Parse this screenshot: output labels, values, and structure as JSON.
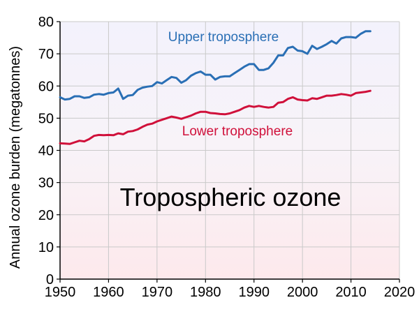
{
  "chart_data": {
    "type": "line",
    "title": "Tropospheric ozone",
    "xlabel": "",
    "ylabel": "Annual ozone burden (megatonnes)",
    "xlim": [
      1950,
      2020
    ],
    "ylim": [
      0,
      80
    ],
    "xticks": [
      1950,
      1960,
      1970,
      1980,
      1990,
      2000,
      2010,
      2020
    ],
    "yticks": [
      0,
      10,
      20,
      30,
      40,
      50,
      60,
      70,
      80
    ],
    "grid": true,
    "series": [
      {
        "name": "Upper troposphere",
        "color": "#2a6fb5",
        "x": [
          1950,
          1951,
          1952,
          1953,
          1954,
          1955,
          1956,
          1957,
          1958,
          1959,
          1960,
          1961,
          1962,
          1963,
          1964,
          1965,
          1966,
          1967,
          1968,
          1969,
          1970,
          1971,
          1972,
          1973,
          1974,
          1975,
          1976,
          1977,
          1978,
          1979,
          1980,
          1981,
          1982,
          1983,
          1984,
          1985,
          1986,
          1987,
          1988,
          1989,
          1990,
          1991,
          1992,
          1993,
          1994,
          1995,
          1996,
          1997,
          1998,
          1999,
          2000,
          2001,
          2002,
          2003,
          2004,
          2005,
          2006,
          2007,
          2008,
          2009,
          2010,
          2011,
          2012,
          2013,
          2014
        ],
        "values": [
          56.5,
          55.8,
          56.0,
          56.8,
          56.8,
          56.3,
          56.5,
          57.3,
          57.5,
          57.3,
          57.8,
          58.0,
          59.2,
          56.0,
          57.0,
          57.2,
          58.8,
          59.5,
          59.8,
          60.0,
          61.2,
          60.8,
          61.8,
          62.8,
          62.5,
          61.0,
          61.8,
          63.2,
          64.0,
          64.5,
          63.5,
          63.5,
          62.0,
          62.8,
          63.0,
          63.0,
          64.0,
          65.0,
          66.0,
          66.8,
          66.8,
          65.0,
          65.0,
          65.5,
          67.2,
          69.5,
          69.5,
          71.8,
          72.2,
          71.0,
          70.8,
          70.0,
          72.5,
          71.5,
          72.2,
          73.0,
          74.0,
          73.2,
          74.8,
          75.2,
          75.2,
          75.0,
          76.2,
          77.0,
          77.0
        ]
      },
      {
        "name": "Lower troposphere",
        "color": "#d0103a",
        "x": [
          1950,
          1951,
          1952,
          1953,
          1954,
          1955,
          1956,
          1957,
          1958,
          1959,
          1960,
          1961,
          1962,
          1963,
          1964,
          1965,
          1966,
          1967,
          1968,
          1969,
          1970,
          1971,
          1972,
          1973,
          1974,
          1975,
          1976,
          1977,
          1978,
          1979,
          1980,
          1981,
          1982,
          1983,
          1984,
          1985,
          1986,
          1987,
          1988,
          1989,
          1990,
          1991,
          1992,
          1993,
          1994,
          1995,
          1996,
          1997,
          1998,
          1999,
          2000,
          2001,
          2002,
          2003,
          2004,
          2005,
          2006,
          2007,
          2008,
          2009,
          2010,
          2011,
          2012,
          2013,
          2014
        ],
        "values": [
          42.2,
          42.1,
          42.0,
          42.5,
          43.0,
          42.8,
          43.5,
          44.5,
          44.8,
          44.7,
          44.8,
          44.7,
          45.3,
          45.0,
          45.8,
          46.0,
          46.5,
          47.3,
          48.0,
          48.3,
          49.0,
          49.5,
          50.0,
          50.5,
          50.2,
          49.8,
          50.3,
          50.8,
          51.5,
          52.0,
          52.0,
          51.6,
          51.5,
          51.3,
          51.2,
          51.5,
          52.0,
          52.5,
          53.3,
          53.8,
          53.5,
          53.8,
          53.5,
          53.3,
          53.5,
          54.8,
          55.0,
          56.0,
          56.5,
          55.8,
          55.6,
          55.5,
          56.2,
          56.0,
          56.5,
          57.0,
          57.0,
          57.2,
          57.5,
          57.3,
          57.0,
          57.8,
          58.0,
          58.2,
          58.5
        ]
      }
    ]
  }
}
